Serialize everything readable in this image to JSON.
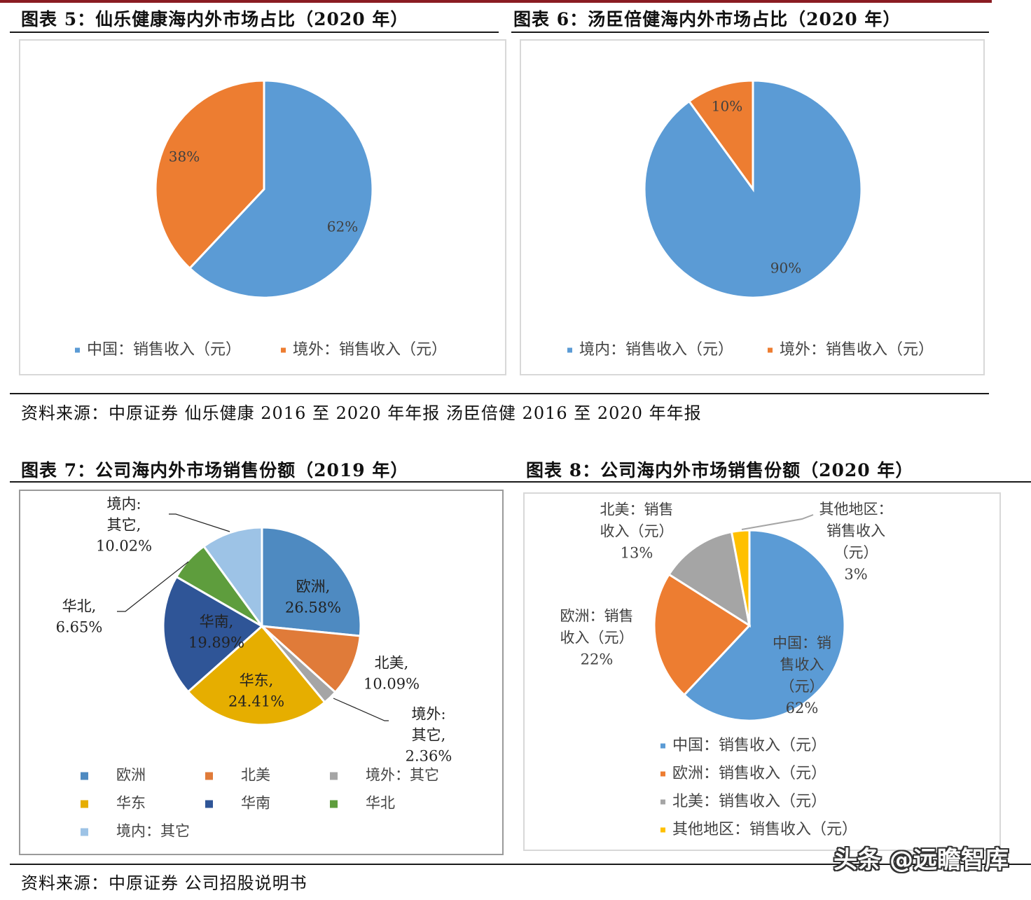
{
  "figures": {
    "fig5": {
      "title": "图表 5：仙乐健康海内外市场占比（2020 年）"
    },
    "fig6": {
      "title": "图表 6：汤臣倍健海内外市场占比（2020 年）"
    },
    "fig7": {
      "title": "图表 7：公司海内外市场销售份额（2019 年）"
    },
    "fig8": {
      "title": "图表 8：公司海内外市场销售份额（2020 年）"
    }
  },
  "sources": {
    "top": "资料来源：中原证券 仙乐健康 2016 至 2020 年年报 汤臣倍健 2016 至 2020 年年报",
    "bottom": "资料来源：中原证券   公司招股说明书"
  },
  "watermark": "头条 @远瞻智库",
  "colors": {
    "blue": "#5b9bd5",
    "orange": "#ed7d31",
    "gray": "#a5a5a5",
    "yellow": "#ffc000",
    "green": "#70ad47",
    "darkblue": "#4472c4",
    "lightblue": "#9dc3e6",
    "steelblue": "#4e8ac1",
    "accent": "#8a1c22"
  },
  "chart_data": [
    {
      "type": "pie",
      "id": "fig5",
      "title": "",
      "labels": [
        "中国：销售收入（元）",
        "境外：销售收入（元）"
      ],
      "values": [
        62,
        38
      ],
      "data_labels": [
        "62%",
        "38%"
      ],
      "colors": [
        "#5b9bd5",
        "#ed7d31"
      ],
      "legend": "bottom"
    },
    {
      "type": "pie",
      "id": "fig6",
      "title": "",
      "labels": [
        "境内：销售收入（元）",
        "境外：销售收入（元）"
      ],
      "values": [
        90,
        10
      ],
      "data_labels": [
        "90%",
        "10%"
      ],
      "colors": [
        "#5b9bd5",
        "#ed7d31"
      ],
      "legend": "bottom"
    },
    {
      "type": "pie",
      "id": "fig7",
      "title": "",
      "labels": [
        "欧洲",
        "北美",
        "境外：其它",
        "华东",
        "华南",
        "华北",
        "境内：其它"
      ],
      "values": [
        26.58,
        10.09,
        2.36,
        24.41,
        19.89,
        6.65,
        10.02
      ],
      "data_labels": [
        [
          "欧洲,",
          "26.58%"
        ],
        [
          "北美,",
          "10.09%"
        ],
        [
          "境外:",
          "其它,",
          "2.36%"
        ],
        [
          "华东,",
          "24.41%"
        ],
        [
          "华南,",
          "19.89%"
        ],
        [
          "华北,",
          "6.65%"
        ],
        [
          "境内:",
          "其它,",
          "10.02%"
        ]
      ],
      "colors": [
        "#4e8ac1",
        "#e07b39",
        "#a5a5a5",
        "#e6ae00",
        "#2f5597",
        "#5e9d3d",
        "#9dc3e6"
      ],
      "legend": "bottom"
    },
    {
      "type": "pie",
      "id": "fig8",
      "title": "",
      "labels": [
        "中国：销售收入（元）",
        "欧洲：销售收入（元）",
        "北美：销售收入（元）",
        "其他地区：销售收入（元）"
      ],
      "values": [
        62,
        22,
        13,
        3
      ],
      "data_labels": [
        [
          "中国：销",
          "售收入",
          "（元）",
          "62%"
        ],
        [
          "欧洲：销售",
          "收入（元）",
          "22%"
        ],
        [
          "北美：销售",
          "收入（元）",
          "13%"
        ],
        [
          "其他地区：",
          "销售收入",
          "（元）",
          "3%"
        ]
      ],
      "colors": [
        "#5b9bd5",
        "#ed7d31",
        "#a5a5a5",
        "#ffc000"
      ],
      "legend": "bottom"
    }
  ]
}
